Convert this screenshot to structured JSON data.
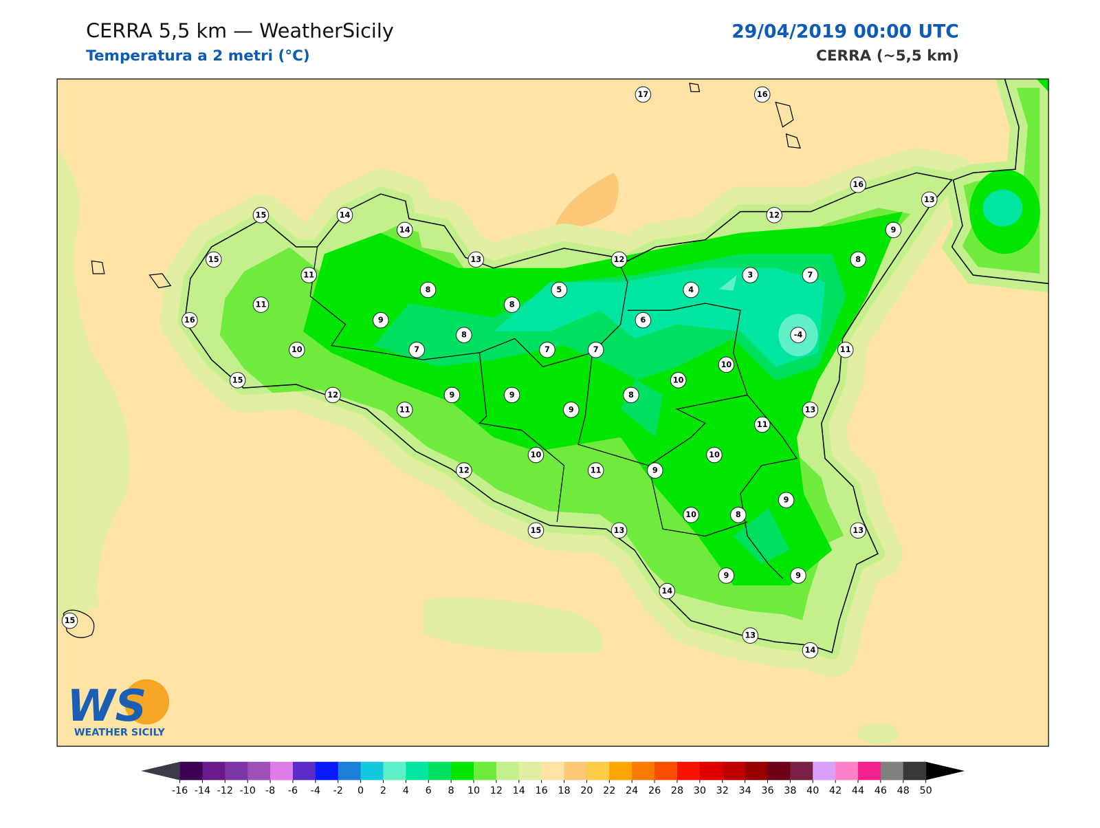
{
  "header": {
    "title": "CERRA 5,5 km — WeatherSicily",
    "subtitle": "Temperatura a 2 metri (°C)",
    "date": "29/04/2019 00:00 UTC",
    "model": "CERRA (~5,5 km)"
  },
  "logo": {
    "mark": "WS",
    "name": "WEATHER SICILY"
  },
  "stations": [
    17,
    16,
    16,
    13,
    15,
    14,
    14,
    12,
    9,
    15,
    13,
    12,
    8,
    11,
    3,
    7,
    11,
    8,
    5,
    4,
    8,
    16,
    9,
    6,
    8,
    -4,
    10,
    7,
    7,
    7,
    11,
    10,
    15,
    10,
    12,
    9,
    9,
    8,
    11,
    9,
    13,
    11,
    10,
    10,
    12,
    11,
    9,
    9,
    10,
    8,
    15,
    13,
    13,
    9,
    9,
    14,
    15,
    13,
    14
  ],
  "colorbar": {
    "ticks": [
      -16,
      -14,
      -12,
      -10,
      -8,
      -6,
      -4,
      -2,
      0,
      2,
      4,
      6,
      8,
      10,
      12,
      14,
      16,
      18,
      20,
      22,
      24,
      26,
      28,
      30,
      32,
      34,
      36,
      38,
      40,
      42,
      44,
      46,
      48,
      50
    ],
    "colors": [
      "#3d0053",
      "#6b1a8a",
      "#7d36a5",
      "#9c50b8",
      "#e07ce8",
      "#5b2cc8",
      "#0a1aff",
      "#1a7fd8",
      "#14c8e0",
      "#5ff0c8",
      "#00e6a0",
      "#00e060",
      "#00e600",
      "#6eeb3c",
      "#c3f08c",
      "#e1eda0",
      "#fde3a6",
      "#fbc878",
      "#fccd45",
      "#fca400",
      "#fb7b00",
      "#fa4f00",
      "#fa1400",
      "#e10000",
      "#c00000",
      "#960000",
      "#6e0018",
      "#7a1f46",
      "#d8a0f8",
      "#ff80c8",
      "#f0208c",
      "#808080",
      "#383838"
    ],
    "under": "#3a3a4a",
    "over": "#000000"
  }
}
